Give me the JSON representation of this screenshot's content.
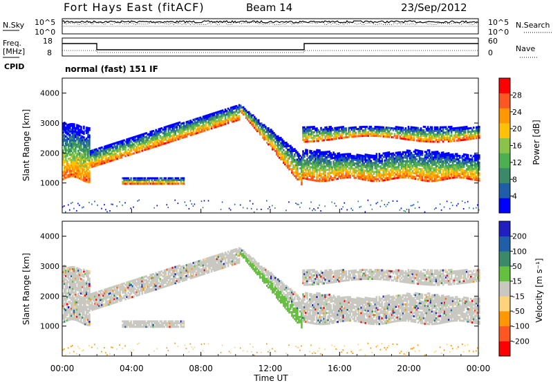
{
  "header": {
    "station": "Fort Hays East (fitACF)",
    "beam": "Beam 14",
    "date": "23/Sep/2012"
  },
  "noise_panel": {
    "left_label": "N.Sky",
    "right_label": "N.Search",
    "left_ticks": [
      "10^5",
      "10^0"
    ],
    "right_ticks": [
      "10^5",
      "10^0"
    ]
  },
  "freq_panel": {
    "left_label_line1": "Freq.",
    "left_label_line2": "[MHz]",
    "right_label": "Nave",
    "left_ticks": [
      "18",
      "8"
    ],
    "right_ticks": [
      "60",
      "0"
    ],
    "cpid_label": "CPID",
    "cpid_text": "normal (fast) 151 IF"
  },
  "colors": {
    "power_scale": [
      "#0000ff",
      "#1f5fa8",
      "#3a8a6a",
      "#4caf50",
      "#8bc34a",
      "#ffc107",
      "#ff9800",
      "#ff5722",
      "#ff0000"
    ],
    "velocity_scale": [
      "#2020c0",
      "#1f5fa8",
      "#3a8a6a",
      "#66c040",
      "#c8c8c0",
      "#ffd37a",
      "#ff9800",
      "#ff5722",
      "#ff0000"
    ]
  },
  "chart_data": [
    {
      "type": "heatmap",
      "name": "power",
      "ylabel": "Slant Range [km]",
      "ylim": [
        0,
        4500
      ],
      "yticks": [
        "1000",
        "2000",
        "3000",
        "4000"
      ],
      "colorbar_label": "Power [dB]",
      "colorbar_ticks": [
        "28",
        "24",
        "20",
        "16",
        "12",
        "8",
        "4"
      ],
      "colorbar_range": [
        0,
        32
      ],
      "bands": [
        {
          "t_start": 0.0,
          "t_end": 1.6,
          "r_low": 1100,
          "r_high": 3100,
          "level": "mixed"
        },
        {
          "t_start": 1.6,
          "t_end": 10.2,
          "r_low": 1500,
          "r_high": 3700,
          "level": "mixed"
        },
        {
          "t_start": 10.2,
          "t_end": 13.8,
          "r_low": 800,
          "r_high": 3600,
          "level": "descending-edge"
        },
        {
          "t_start": 14.0,
          "t_end": 24.0,
          "r_low": 1100,
          "r_high": 2000,
          "level": "strong"
        },
        {
          "t_start": 14.0,
          "t_end": 24.0,
          "r_low": 2400,
          "r_high": 2900,
          "level": "weak"
        },
        {
          "t_start": 3.4,
          "t_end": 7.0,
          "r_low": 950,
          "r_high": 1150,
          "level": "weak"
        }
      ]
    },
    {
      "type": "heatmap",
      "name": "velocity",
      "xlabel": "Time UT",
      "ylabel": "Slant Range [km]",
      "ylim": [
        0,
        4500
      ],
      "yticks": [
        "1000",
        "2000",
        "3000",
        "4000"
      ],
      "xticks": [
        "00:00",
        "04:00",
        "08:00",
        "12:00",
        "16:00",
        "20:00",
        "00:00"
      ],
      "xlim": [
        0,
        24
      ],
      "colorbar_label": "Velocity [m s⁻¹]",
      "colorbar_ticks": [
        "200",
        "100",
        "50",
        "15",
        "-15",
        "-50",
        "-100",
        "-200"
      ],
      "colorbar_range": [
        -250,
        250
      ]
    }
  ]
}
